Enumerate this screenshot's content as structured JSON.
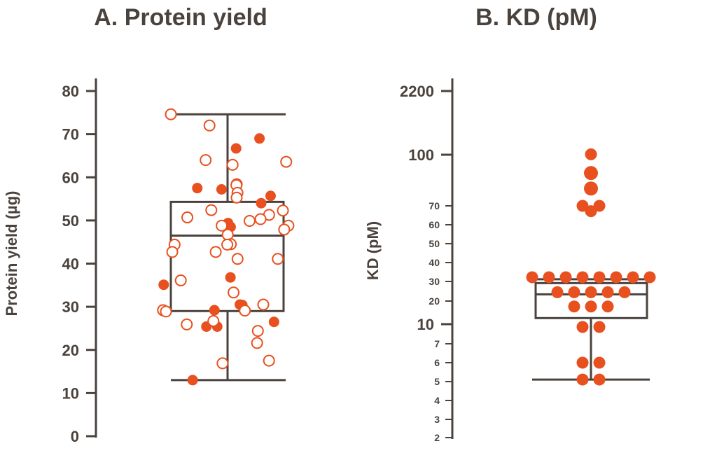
{
  "colors": {
    "ink": "#4a423d",
    "accent": "#e8501f",
    "background": "#ffffff"
  },
  "chart_data": [
    {
      "type": "scatter",
      "subtype": "box-plot-with-jittered-points",
      "title": "A.  Protein yield",
      "ylabel": "Protein yield (µg)",
      "xlabel": "",
      "ylim": [
        0,
        80
      ],
      "yticks": [
        "0",
        "10",
        "20",
        "30",
        "40",
        "50",
        "60",
        "70",
        "80"
      ],
      "grid": false,
      "legend": "none",
      "box": {
        "whisker_low": 13,
        "q1": 29,
        "median": 46.5,
        "q3": 54.3,
        "whisker_high": 74.6
      },
      "series": [
        {
          "style": "filled",
          "values": [
            69,
            66.7,
            57.2,
            57.5,
            55.7,
            54,
            49.4,
            48.5,
            36.8,
            35.1,
            30.5,
            30.4,
            29.2,
            26.5,
            25.4,
            25.4,
            13
          ]
        },
        {
          "style": "hollow",
          "values": [
            74.6,
            72,
            64,
            63.6,
            62.9,
            58.4,
            58.2,
            56.4,
            55.3,
            52.4,
            52.3,
            51.3,
            50.7,
            50.3,
            49.9,
            48.8,
            48.8,
            47.9,
            46.7,
            44.5,
            44.4,
            44.4,
            42.7,
            42.7,
            41.1,
            41.1,
            36.1,
            33.3,
            30.5,
            29.2,
            29.1,
            28.9,
            26.7,
            25.9,
            24.4,
            21.6,
            17.5,
            16.9
          ]
        }
      ]
    },
    {
      "type": "scatter",
      "subtype": "box-plot-with-jittered-points",
      "title": "B.  KD (pM)",
      "ylabel": "KD (pM)",
      "xlabel": "",
      "yscale": "custom-broken-log",
      "ylim": [
        2,
        2200
      ],
      "yticks_major": [
        "10",
        "100",
        "2200"
      ],
      "yticks_minor": [
        "2",
        "3",
        "4",
        "5",
        "6",
        "7",
        "20",
        "30",
        "40",
        "50",
        "60",
        "70"
      ],
      "grid": false,
      "legend": "none",
      "box": {
        "whisker_low": 5.1,
        "q1": 12,
        "median": 23,
        "q3": 29,
        "whisker_high": 31
      },
      "series": [
        {
          "style": "filled",
          "values": [
            102,
            88,
            79,
            70,
            70,
            67,
            32,
            32,
            32,
            32,
            32,
            32,
            32,
            32,
            24,
            24,
            24,
            24,
            24,
            17,
            17,
            17,
            9.5,
            9.5,
            6,
            6,
            5.1,
            5.1
          ]
        }
      ]
    }
  ]
}
